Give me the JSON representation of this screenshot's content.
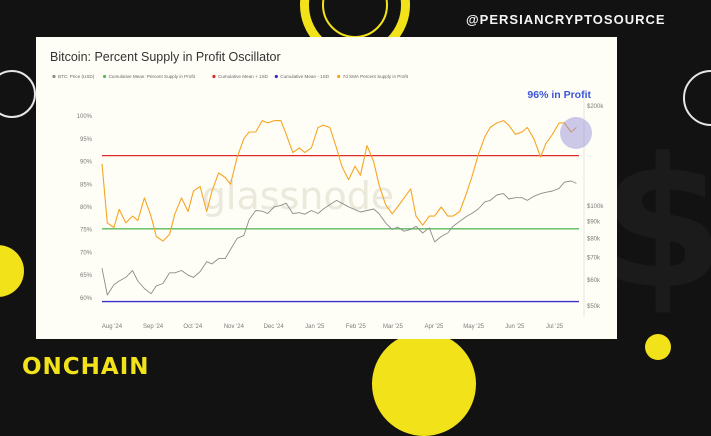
{
  "page": {
    "handle": "@PERSIANCRYPTOSOURCE",
    "brand": "ONCHAIN",
    "watermark": "glassnode"
  },
  "chart_data": {
    "type": "line",
    "title": "Bitcoin: Percent Supply in Profit Oscillator",
    "annotation": "96% in Profit",
    "legend": [
      {
        "name": "BTC: Price (USD)",
        "color": "#8c8c8c"
      },
      {
        "name": "Cumulative Mean: Percent Supply in Profit",
        "color": "#5cb85c"
      },
      {
        "name": "Cumulative Mean + 1SD",
        "color": "#e02a2a"
      },
      {
        "name": "Cumulative Mean - 1SD",
        "color": "#3b2fc9"
      },
      {
        "name": "7d SMA Percent Supply in Profit",
        "color": "#f5a524"
      }
    ],
    "x_labels": [
      "Aug '24",
      "Sep '24",
      "Oct '24",
      "Nov '24",
      "Dec '24",
      "Jan '25",
      "Feb '25",
      "Mar '25",
      "Apr '25",
      "May '25",
      "Jun '25",
      "Jul '25"
    ],
    "x_range": [
      "2024-08-01",
      "2025-07-27"
    ],
    "left_axis": {
      "ticks": [
        "60%",
        "65%",
        "70%",
        "75%",
        "80%",
        "85%",
        "90%",
        "95%",
        "100%"
      ],
      "range": [
        58,
        102
      ]
    },
    "right_axis": {
      "ticks": [
        "$50k",
        "$60k",
        "$70k",
        "$80k",
        "$90k",
        "$100k",
        "$200k"
      ],
      "scale": "log"
    },
    "reference_lines": {
      "mean_plus_1sd": 91.3,
      "cumulative_mean": 75.2,
      "mean_minus_1sd": 59.2
    },
    "series": [
      {
        "name": "7d SMA Percent Supply in Profit",
        "color": "#f5a524",
        "x": [
          "2024-08-01",
          "2024-08-05",
          "2024-08-10",
          "2024-08-14",
          "2024-08-19",
          "2024-08-24",
          "2024-08-28",
          "2024-09-02",
          "2024-09-07",
          "2024-09-11",
          "2024-09-16",
          "2024-09-21",
          "2024-09-25",
          "2024-09-30",
          "2024-10-05",
          "2024-10-09",
          "2024-10-14",
          "2024-10-19",
          "2024-10-23",
          "2024-10-28",
          "2024-11-02",
          "2024-11-06",
          "2024-11-11",
          "2024-11-16",
          "2024-11-20",
          "2024-11-25",
          "2024-11-30",
          "2024-12-04",
          "2024-12-09",
          "2024-12-14",
          "2024-12-18",
          "2024-12-23",
          "2024-12-28",
          "2025-01-01",
          "2025-01-06",
          "2025-01-11",
          "2025-01-15",
          "2025-01-20",
          "2025-01-25",
          "2025-01-29",
          "2025-02-03",
          "2025-02-08",
          "2025-02-12",
          "2025-02-17",
          "2025-02-22",
          "2025-02-26",
          "2025-03-03",
          "2025-03-08",
          "2025-03-12",
          "2025-03-17",
          "2025-03-22",
          "2025-03-26",
          "2025-03-31",
          "2025-04-05",
          "2025-04-09",
          "2025-04-14",
          "2025-04-19",
          "2025-04-23",
          "2025-04-28",
          "2025-05-03",
          "2025-05-07",
          "2025-05-12",
          "2025-05-17",
          "2025-05-21",
          "2025-05-26",
          "2025-05-31",
          "2025-06-04",
          "2025-06-09",
          "2025-06-14",
          "2025-06-18",
          "2025-06-23",
          "2025-06-28",
          "2025-07-02",
          "2025-07-07",
          "2025-07-12",
          "2025-07-16",
          "2025-07-21",
          "2025-07-25"
        ],
        "values": [
          89.5,
          76.5,
          75.5,
          79.5,
          76.5,
          78,
          77,
          82,
          78,
          73.5,
          72.5,
          74,
          78.5,
          82,
          79,
          83.5,
          84.5,
          79,
          83.5,
          87.5,
          86.5,
          85,
          91,
          95,
          96.5,
          96.5,
          99,
          98.5,
          99,
          99,
          96,
          92,
          93,
          92,
          93,
          97.5,
          98,
          97.5,
          93,
          89,
          86,
          89,
          87,
          93.5,
          90,
          85,
          80.5,
          78.5,
          80,
          82,
          84,
          78,
          76,
          78,
          78,
          80,
          78,
          78,
          79,
          83,
          86.5,
          91.5,
          95.5,
          97.5,
          98.5,
          99,
          98,
          96,
          96.5,
          97.5,
          95,
          91,
          94,
          96,
          98.5,
          98.5,
          96.5,
          97.5
        ]
      },
      {
        "name": "BTC: Price (USD)",
        "color": "#8c8c8c",
        "x": [
          "2024-08-01",
          "2024-08-05",
          "2024-08-10",
          "2024-08-14",
          "2024-08-19",
          "2024-08-24",
          "2024-08-28",
          "2024-09-02",
          "2024-09-07",
          "2024-09-11",
          "2024-09-16",
          "2024-09-21",
          "2024-09-25",
          "2024-09-30",
          "2024-10-05",
          "2024-10-09",
          "2024-10-14",
          "2024-10-19",
          "2024-10-23",
          "2024-10-28",
          "2024-11-02",
          "2024-11-06",
          "2024-11-11",
          "2024-11-16",
          "2024-11-20",
          "2024-11-25",
          "2024-11-30",
          "2024-12-04",
          "2024-12-09",
          "2024-12-14",
          "2024-12-18",
          "2024-12-23",
          "2024-12-28",
          "2025-01-01",
          "2025-01-06",
          "2025-01-11",
          "2025-01-15",
          "2025-01-20",
          "2025-01-25",
          "2025-01-29",
          "2025-02-03",
          "2025-02-08",
          "2025-02-12",
          "2025-02-17",
          "2025-02-22",
          "2025-02-26",
          "2025-03-03",
          "2025-03-08",
          "2025-03-12",
          "2025-03-17",
          "2025-03-22",
          "2025-03-26",
          "2025-03-31",
          "2025-04-05",
          "2025-04-09",
          "2025-04-14",
          "2025-04-19",
          "2025-04-23",
          "2025-04-28",
          "2025-05-03",
          "2025-05-07",
          "2025-05-12",
          "2025-05-17",
          "2025-05-21",
          "2025-05-26",
          "2025-05-31",
          "2025-06-04",
          "2025-06-09",
          "2025-06-14",
          "2025-06-18",
          "2025-06-23",
          "2025-06-28",
          "2025-07-02",
          "2025-07-07",
          "2025-07-12",
          "2025-07-16",
          "2025-07-21",
          "2025-07-25"
        ],
        "values": [
          65000,
          54000,
          58000,
          59500,
          61000,
          64000,
          59500,
          56500,
          54500,
          57500,
          58500,
          63000,
          63000,
          64000,
          62000,
          61000,
          63500,
          68000,
          67000,
          69500,
          69500,
          74000,
          80000,
          81500,
          91000,
          97000,
          96500,
          95000,
          99500,
          100500,
          102000,
          95000,
          95500,
          94500,
          97000,
          95000,
          98000,
          101000,
          104000,
          102000,
          99500,
          97500,
          96000,
          97000,
          98000,
          95000,
          89000,
          85000,
          86500,
          84000,
          85000,
          87000,
          83000,
          86000,
          78000,
          81000,
          83000,
          87000,
          90000,
          93000,
          95000,
          98000,
          103000,
          104000,
          108000,
          109000,
          105000,
          106000,
          106000,
          104000,
          107000,
          109000,
          110000,
          111000,
          113000,
          118000,
          119000,
          117000
        ]
      }
    ]
  }
}
